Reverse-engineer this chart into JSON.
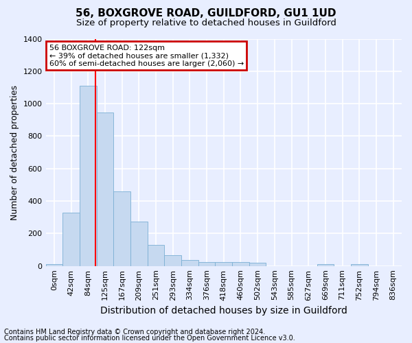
{
  "title": "56, BOXGROVE ROAD, GUILDFORD, GU1 1UD",
  "subtitle": "Size of property relative to detached houses in Guildford",
  "xlabel": "Distribution of detached houses by size in Guildford",
  "ylabel": "Number of detached properties",
  "bin_labels": [
    "0sqm",
    "42sqm",
    "84sqm",
    "125sqm",
    "167sqm",
    "209sqm",
    "251sqm",
    "293sqm",
    "334sqm",
    "376sqm",
    "418sqm",
    "460sqm",
    "502sqm",
    "543sqm",
    "585sqm",
    "627sqm",
    "669sqm",
    "711sqm",
    "752sqm",
    "794sqm",
    "836sqm"
  ],
  "bar_values": [
    10,
    330,
    1110,
    945,
    460,
    275,
    130,
    68,
    38,
    22,
    25,
    25,
    18,
    0,
    0,
    0,
    12,
    0,
    12,
    0,
    0
  ],
  "bar_color": "#c6d9f0",
  "bar_edge_color": "#7bafd4",
  "ylim": [
    0,
    1400
  ],
  "yticks": [
    0,
    200,
    400,
    600,
    800,
    1000,
    1200,
    1400
  ],
  "property_line_x": 2.93,
  "annotation_line1": "56 BOXGROVE ROAD: 122sqm",
  "annotation_line2": "← 39% of detached houses are smaller (1,332)",
  "annotation_line3": "60% of semi-detached houses are larger (2,060) →",
  "annotation_box_color": "#cc0000",
  "footer_line1": "Contains HM Land Registry data © Crown copyright and database right 2024.",
  "footer_line2": "Contains public sector information licensed under the Open Government Licence v3.0.",
  "bg_color": "#e8eeff",
  "plot_bg_color": "#e8eeff",
  "grid_color": "#ffffff",
  "title_fontsize": 11,
  "subtitle_fontsize": 9.5,
  "ylabel_fontsize": 9,
  "xlabel_fontsize": 10,
  "tick_fontsize": 8,
  "annotation_fontsize": 8,
  "footer_fontsize": 7
}
